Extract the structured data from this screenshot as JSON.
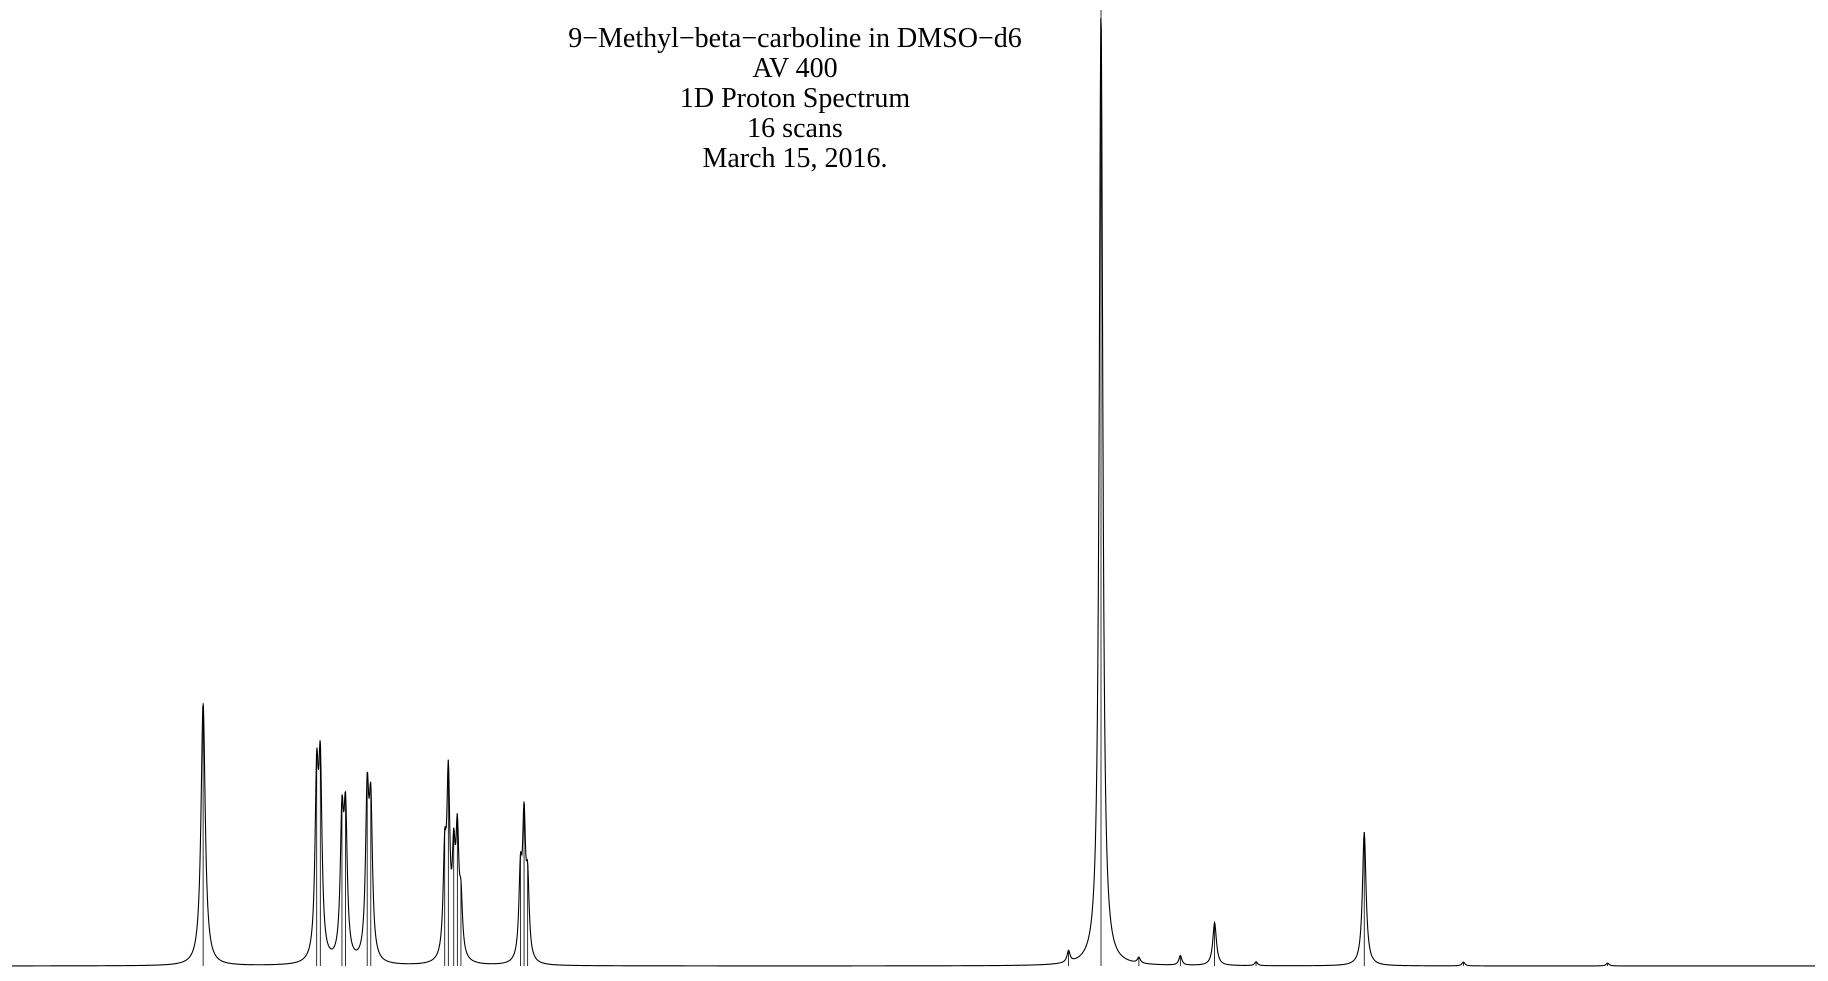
{
  "chart_data": {
    "type": "line",
    "title_lines": [
      "9−Methyl−beta−carboline in DMSO−d6",
      "AV 400",
      "1D Proton Spectrum",
      "16 scans",
      "March 15, 2016."
    ],
    "xlabel": "",
    "ylabel": "",
    "x_axis_reversed": true,
    "x_range_ppm": [
      10.0,
      0.0
    ],
    "grid": false,
    "legend": "none",
    "line_color": "#000000",
    "peaks": [
      {
        "ppm": 8.94,
        "height": 0.275,
        "width": 0.014
      },
      {
        "ppm": 8.31,
        "height": 0.18,
        "width": 0.011
      },
      {
        "ppm": 8.29,
        "height": 0.19,
        "width": 0.011
      },
      {
        "ppm": 8.17,
        "height": 0.14,
        "width": 0.011
      },
      {
        "ppm": 8.15,
        "height": 0.145,
        "width": 0.011
      },
      {
        "ppm": 8.03,
        "height": 0.165,
        "width": 0.011
      },
      {
        "ppm": 8.01,
        "height": 0.15,
        "width": 0.011
      },
      {
        "ppm": 7.6,
        "height": 0.1,
        "width": 0.01
      },
      {
        "ppm": 7.58,
        "height": 0.18,
        "width": 0.01
      },
      {
        "ppm": 7.55,
        "height": 0.095,
        "width": 0.01
      },
      {
        "ppm": 7.53,
        "height": 0.12,
        "width": 0.01
      },
      {
        "ppm": 7.51,
        "height": 0.055,
        "width": 0.01
      },
      {
        "ppm": 7.18,
        "height": 0.085,
        "width": 0.01
      },
      {
        "ppm": 7.16,
        "height": 0.14,
        "width": 0.01
      },
      {
        "ppm": 7.14,
        "height": 0.075,
        "width": 0.01
      },
      {
        "ppm": 4.14,
        "height": 0.012,
        "width": 0.01
      },
      {
        "ppm": 3.96,
        "height": 1.0,
        "width": 0.012
      },
      {
        "ppm": 3.33,
        "height": 0.045,
        "width": 0.012
      },
      {
        "ppm": 2.5,
        "height": 0.14,
        "width": 0.012
      },
      {
        "ppm": 3.52,
        "height": 0.01,
        "width": 0.01
      },
      {
        "ppm": 3.75,
        "height": 0.006,
        "width": 0.01
      },
      {
        "ppm": 3.1,
        "height": 0.004,
        "width": 0.01
      },
      {
        "ppm": 1.95,
        "height": 0.004,
        "width": 0.01
      },
      {
        "ppm": 1.15,
        "height": 0.003,
        "width": 0.01
      }
    ]
  }
}
